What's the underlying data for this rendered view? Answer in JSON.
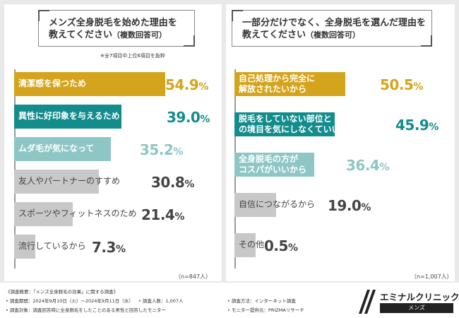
{
  "left": {
    "question_line1": "メンズ全身脱毛を始めた理由を",
    "question_line2": "教えてください",
    "question_sub": "（複数回答可）",
    "note": "※全7項目中上位6項目を抜粋",
    "n_label": "（n=847人）"
  },
  "right": {
    "question_line1": "一部分だけでなく、全身脱毛を選んだ理由を",
    "question_line2": "教えてください",
    "question_sub": "（複数回答可）",
    "n_label": "（n=1,007人）"
  },
  "chart_data": [
    {
      "type": "bar",
      "title": "メンズ全身脱毛を始めた理由を教えてください（複数回答可）",
      "unit": "%",
      "xlim": [
        0,
        60
      ],
      "categories": [
        "清潔感を保つため",
        "異性に好印象を与えるため",
        "ムダ毛が気になって",
        "友人やパートナーのすすめ",
        "スポーツやフィットネスのため",
        "流行しているから"
      ],
      "values": [
        54.9,
        39.0,
        35.2,
        30.8,
        21.4,
        7.3
      ],
      "value_labels": [
        [
          "54.9",
          "%"
        ],
        [
          "39.0",
          "%"
        ],
        [
          "35.2",
          "%"
        ],
        [
          "30.8",
          "%"
        ],
        [
          "21.4",
          "%"
        ],
        [
          "7.3",
          "%"
        ]
      ]
    },
    {
      "type": "bar",
      "title": "一部分だけでなく、全身脱毛を選んだ理由を教えてください（複数回答可）",
      "unit": "%",
      "xlim": [
        0,
        60
      ],
      "categories": [
        [
          "自己処理から完全に",
          "解放されたいから"
        ],
        [
          "脱毛をしていない部位と",
          "の境目を気にしなくていいから"
        ],
        [
          "全身脱毛の方が",
          "コスパがいいから"
        ],
        [
          "自信につながるから"
        ],
        [
          "その他"
        ]
      ],
      "values": [
        50.5,
        45.9,
        36.4,
        19.0,
        0.5
      ],
      "value_labels": [
        [
          "50.5",
          "%"
        ],
        [
          "45.9",
          "%"
        ],
        [
          "36.4",
          "%"
        ],
        [
          "19.0",
          "%"
        ],
        [
          "0.5",
          "%"
        ]
      ]
    }
  ],
  "colors": {
    "gold": "#d4a51c",
    "teal": "#138c8c",
    "light_teal": "#8ec6c6",
    "gray": "#c8c8c8",
    "dark_text": "#444444"
  },
  "footer": {
    "title": "《調査概要：「メンズ全身脱毛の効果」に関する調査》",
    "period": "• 調査期間：2024年9月10日（火）〜2024年9月11日（水）",
    "count": "• 調査人数：1,007人",
    "method": "• 調査方法：インターネット調査",
    "target": "• 調査対象：調査回答時に全身脱毛をしたことのある男性と回答したモニター",
    "provider": "• モニター提供元：PRIZMAリサーチ"
  },
  "logo": {
    "name": "エミナルクリニック",
    "sub": "メンズ"
  }
}
